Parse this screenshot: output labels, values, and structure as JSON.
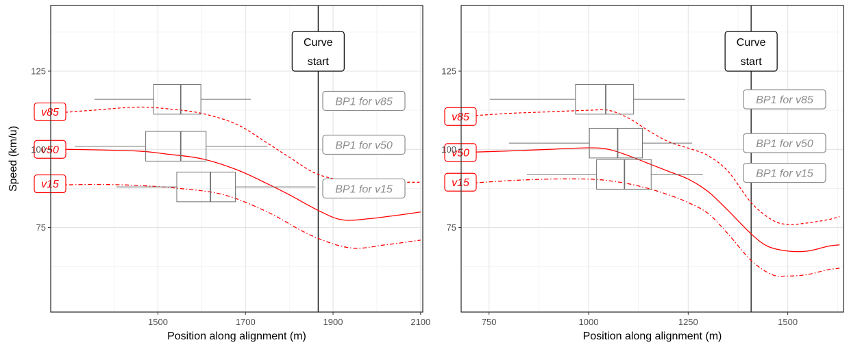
{
  "chart_data": [
    {
      "type": "line",
      "title": "",
      "xlabel": "Position along alignment (m)",
      "ylabel": "Speed (km/u)",
      "xlim": [
        1255,
        2105
      ],
      "ylim": [
        48,
        146
      ],
      "x_ticks": [
        1500,
        1700,
        1900,
        2100
      ],
      "x_tick_labels": [
        "1500",
        "1700",
        "1900",
        "2100"
      ],
      "y_ticks": [
        75,
        100,
        125
      ],
      "y_tick_labels": [
        "75",
        "100",
        "125"
      ],
      "grid": true,
      "vline": {
        "x": 1866,
        "label_line1": "Curve",
        "label_line2": "start"
      },
      "series": [
        {
          "name": "v85",
          "style": "dashed",
          "color": "#ff0000",
          "x": [
            1255,
            1350,
            1450,
            1520,
            1600,
            1680,
            1750,
            1800,
            1866,
            1950,
            2030,
            2100
          ],
          "y": [
            111.5,
            112.5,
            113.5,
            113.0,
            111.5,
            108.0,
            102.0,
            97.5,
            92.0,
            89.5,
            89.5,
            89.5
          ]
        },
        {
          "name": "v50",
          "style": "solid",
          "color": "#ff0000",
          "x": [
            1255,
            1300,
            1450,
            1520,
            1600,
            1680,
            1750,
            1800,
            1866,
            1920,
            1980,
            2050,
            2100
          ],
          "y": [
            100.0,
            100.0,
            99.5,
            98.5,
            97.0,
            93.5,
            89.0,
            85.5,
            80.5,
            77.5,
            77.8,
            79.0,
            80.0
          ]
        },
        {
          "name": "v15",
          "style": "dashdot",
          "color": "#ff0000",
          "x": [
            1255,
            1350,
            1450,
            1550,
            1650,
            1750,
            1850,
            1940,
            2020,
            2100
          ],
          "y": [
            88.5,
            88.8,
            88.5,
            87.5,
            85.5,
            80.0,
            72.5,
            68.5,
            69.5,
            71.0
          ]
        }
      ],
      "series_labels": [
        {
          "text": "v85",
          "y": 112
        },
        {
          "text": "v50",
          "y": 100
        },
        {
          "text": "v15",
          "y": 89
        }
      ],
      "boxplots": [
        {
          "y": 116,
          "min": 1355,
          "q1": 1490,
          "median": 1552,
          "q3": 1598,
          "max": 1712,
          "height": 9.5
        },
        {
          "y": 101,
          "min": 1310,
          "q1": 1472,
          "median": 1552,
          "q3": 1610,
          "max": 1750,
          "height": 9.5
        },
        {
          "y": 88,
          "min": 1405,
          "q1": 1543,
          "median": 1620,
          "q3": 1677,
          "max": 1860,
          "height": 9.5
        }
      ],
      "bp_labels": [
        {
          "text": "BP1 for v85",
          "y": 115.5
        },
        {
          "text": "BP1 for v50",
          "y": 101.5
        },
        {
          "text": "BP1 for v15",
          "y": 87.5
        }
      ]
    },
    {
      "type": "line",
      "title": "",
      "xlabel": "Position along alignment (m)",
      "ylabel": "",
      "xlim": [
        680,
        1640
      ],
      "ylim": [
        48,
        146
      ],
      "x_ticks": [
        750,
        1000,
        1250,
        1500
      ],
      "x_tick_labels": [
        "750",
        "1000",
        "1250",
        "1500"
      ],
      "y_ticks": [
        75,
        100,
        125
      ],
      "y_tick_labels": [
        "75",
        "100",
        "125"
      ],
      "grid": true,
      "vline": {
        "x": 1408,
        "label_line1": "Curve",
        "label_line2": "start"
      },
      "series": [
        {
          "name": "v85",
          "style": "dashed",
          "color": "#ff0000",
          "x": [
            680,
            800,
            900,
            1000,
            1050,
            1100,
            1150,
            1200,
            1260,
            1300,
            1350,
            1408,
            1460,
            1500,
            1550,
            1600,
            1630
          ],
          "y": [
            110.5,
            111.5,
            112.0,
            112.5,
            112.5,
            110.0,
            106.0,
            102.5,
            100.0,
            98.0,
            93.0,
            83.0,
            77.5,
            76.0,
            76.5,
            77.5,
            78.5
          ]
        },
        {
          "name": "v50",
          "style": "solid",
          "color": "#ff0000",
          "x": [
            680,
            800,
            900,
            1000,
            1050,
            1100,
            1150,
            1200,
            1250,
            1300,
            1350,
            1408,
            1450,
            1500,
            1550,
            1600,
            1630
          ],
          "y": [
            99.0,
            99.5,
            100.0,
            100.5,
            100.0,
            98.0,
            95.5,
            93.0,
            90.5,
            86.5,
            80.5,
            73.0,
            69.0,
            67.5,
            67.5,
            69.0,
            69.5
          ]
        },
        {
          "name": "v15",
          "style": "dashdot",
          "color": "#ff0000",
          "x": [
            680,
            800,
            900,
            1000,
            1050,
            1100,
            1150,
            1200,
            1250,
            1300,
            1350,
            1408,
            1460,
            1500,
            1550,
            1600,
            1630
          ],
          "y": [
            89.0,
            90.0,
            90.5,
            90.5,
            90.0,
            89.0,
            87.5,
            85.5,
            83.0,
            79.5,
            73.0,
            64.5,
            60.0,
            59.5,
            60.0,
            61.5,
            62.0
          ]
        }
      ],
      "series_labels": [
        {
          "text": "v85",
          "y": 110.5
        },
        {
          "text": "v50",
          "y": 99
        },
        {
          "text": "v15",
          "y": 89.5
        }
      ],
      "boxplots": [
        {
          "y": 116,
          "min": 752,
          "q1": 967,
          "median": 1043,
          "q3": 1113,
          "max": 1242,
          "height": 9.5
        },
        {
          "y": 102,
          "min": 800,
          "q1": 1002,
          "median": 1073,
          "q3": 1135,
          "max": 1260,
          "height": 9.5
        },
        {
          "y": 92,
          "min": 845,
          "q1": 1020,
          "median": 1090,
          "q3": 1157,
          "max": 1287,
          "height": 9.5
        }
      ],
      "bp_labels": [
        {
          "text": "BP1 for v85",
          "y": 116
        },
        {
          "text": "BP1 for v50",
          "y": 102
        },
        {
          "text": "BP1 for v15",
          "y": 92.5
        }
      ]
    }
  ]
}
